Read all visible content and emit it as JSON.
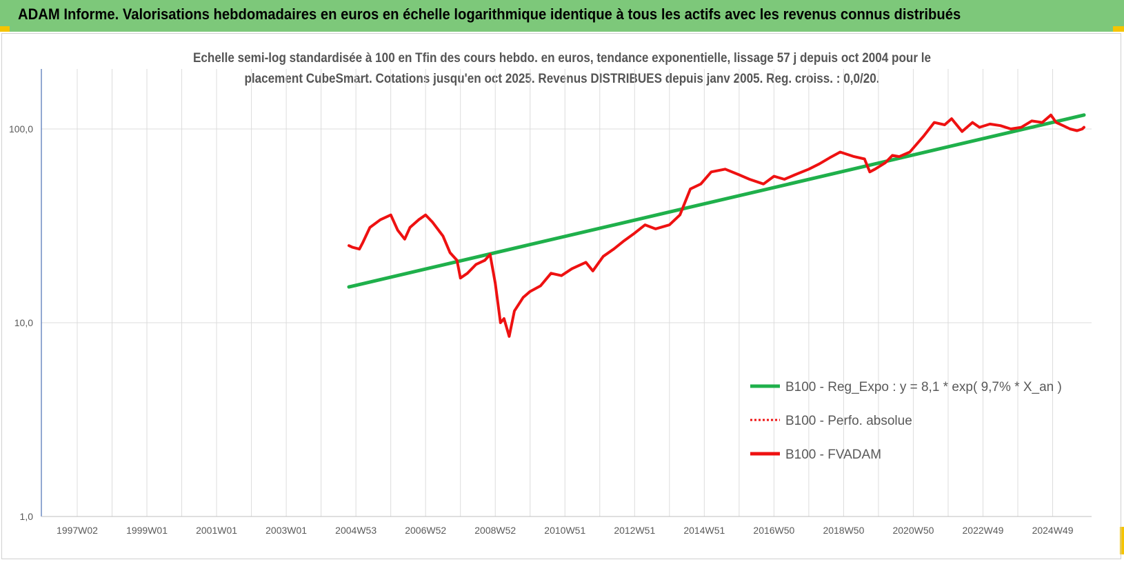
{
  "banner": {
    "title": "ADAM Informe. Valorisations hebdomadaires en euros en échelle logarithmique identique à tous les actifs avec les revenus connus distribués"
  },
  "colors": {
    "banner": "#7dc87a",
    "corner": "#f5c400",
    "trend": "#1fb04b",
    "price": "#ee1111",
    "grid": "#dcdcdc",
    "axis": "#4a6fb5"
  },
  "chart_data": {
    "type": "line",
    "title_lines": [
      "Echelle semi-log standardisée à 100 en Tfin des cours hebdo. en euros, tendance exponentielle, lissage 57 j depuis oct 2004 pour le",
      "placement CubeSmart. Cotations jusqu'en oct 2025. Revenus DISTRIBUES depuis janv 2005. Reg. croiss. : 0,0/20."
    ],
    "y_scale": "log",
    "ylim": [
      1,
      200
    ],
    "y_ticks": [
      {
        "value": 1,
        "label": "1,0"
      },
      {
        "value": 10,
        "label": "10,0"
      },
      {
        "value": 100,
        "label": "100,0"
      }
    ],
    "xlim": [
      1997.0,
      2025.9
    ],
    "x_ticks": [
      {
        "value": 1997.0,
        "label": "1997W02"
      },
      {
        "value": 1999.0,
        "label": "1999W01"
      },
      {
        "value": 2001.0,
        "label": "2001W01"
      },
      {
        "value": 2003.0,
        "label": "2003W01"
      },
      {
        "value": 2005.0,
        "label": "2004W53"
      },
      {
        "value": 2007.0,
        "label": "2006W52"
      },
      {
        "value": 2009.0,
        "label": "2008W52"
      },
      {
        "value": 2011.0,
        "label": "2010W51"
      },
      {
        "value": 2013.0,
        "label": "2012W51"
      },
      {
        "value": 2015.0,
        "label": "2014W51"
      },
      {
        "value": 2017.0,
        "label": "2016W50"
      },
      {
        "value": 2019.0,
        "label": "2018W50"
      },
      {
        "value": 2021.0,
        "label": "2020W50"
      },
      {
        "value": 2023.0,
        "label": "2022W49"
      },
      {
        "value": 2025.0,
        "label": "2024W49"
      }
    ],
    "legend_position": "bottom-right",
    "series": [
      {
        "name": "B100 - Reg_Expo : y = 8,1 * exp( 9,7% *  X_an )",
        "style": "solid",
        "x": [
          2004.8,
          2025.9
        ],
        "y": [
          15.3,
          118
        ]
      },
      {
        "name": "B100 - Perfo. absolue",
        "style": "dotted",
        "x": [],
        "y": []
      },
      {
        "name": "B100 - FVADAM",
        "style": "solid",
        "x": [
          2004.8,
          2004.9,
          2005.1,
          2005.2,
          2005.4,
          2005.7,
          2006.0,
          2006.2,
          2006.4,
          2006.55,
          2006.8,
          2007.0,
          2007.2,
          2007.5,
          2007.7,
          2007.9,
          2008.0,
          2008.2,
          2008.45,
          2008.7,
          2008.85,
          2009.0,
          2009.15,
          2009.25,
          2009.4,
          2009.55,
          2009.8,
          2010.0,
          2010.3,
          2010.6,
          2010.9,
          2011.2,
          2011.6,
          2011.8,
          2012.1,
          2012.4,
          2012.7,
          2013.0,
          2013.3,
          2013.6,
          2014.0,
          2014.3,
          2014.6,
          2014.9,
          2015.2,
          2015.6,
          2016.0,
          2016.3,
          2016.7,
          2017.0,
          2017.3,
          2017.6,
          2018.0,
          2018.3,
          2018.6,
          2018.9,
          2019.3,
          2019.6,
          2019.75,
          2019.9,
          2020.2,
          2020.4,
          2020.6,
          2020.9,
          2021.3,
          2021.6,
          2021.9,
          2022.1,
          2022.4,
          2022.7,
          2022.9,
          2023.2,
          2023.5,
          2023.8,
          2024.1,
          2024.4,
          2024.7,
          2024.95,
          2025.1,
          2025.3,
          2025.5,
          2025.7,
          2025.85,
          2025.9
        ],
        "y": [
          25,
          24.5,
          24,
          26,
          31,
          34,
          36,
          30,
          27,
          31,
          34,
          36,
          33,
          28,
          23,
          21,
          17,
          18,
          20,
          21,
          22.5,
          16,
          10,
          10.5,
          8.5,
          11.5,
          13.5,
          14.5,
          15.5,
          18,
          17.5,
          19,
          20.5,
          18.5,
          22,
          24,
          26.5,
          29,
          32,
          30.5,
          32,
          36,
          49,
          52,
          60,
          62,
          58,
          55,
          52,
          57,
          55,
          58,
          62,
          66,
          71,
          76,
          72,
          70,
          60,
          62,
          67,
          73,
          72,
          76,
          92,
          108,
          105,
          113,
          97,
          108,
          102,
          106,
          104,
          100,
          102,
          110,
          108,
          118,
          108,
          104,
          100,
          98,
          100,
          102
        ]
      }
    ]
  }
}
